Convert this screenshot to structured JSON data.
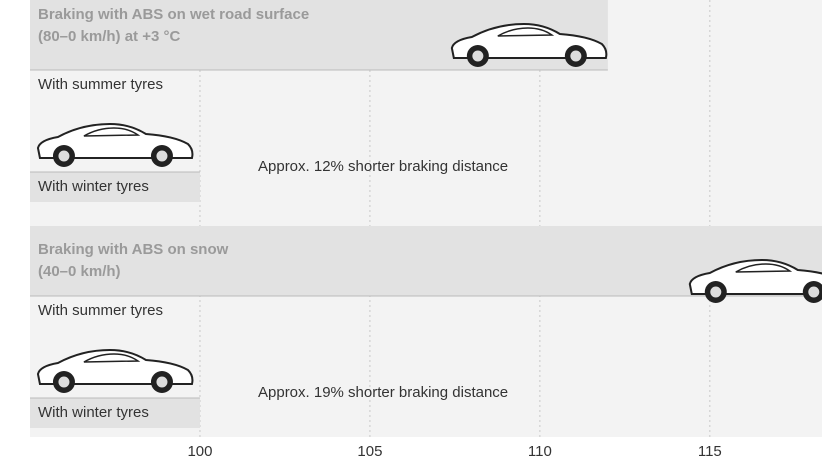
{
  "chart_data": {
    "type": "bar",
    "orientation": "horizontal",
    "groups": [
      {
        "title": [
          "Braking with ABS on wet road surface",
          "(80–0 km/h) at +3 °C"
        ],
        "categories": [
          "With summer tyres",
          "With winter tyres"
        ],
        "values": [
          112,
          100
        ],
        "annotation": "Approx. 12% shorter braking distance"
      },
      {
        "title": [
          "Braking with ABS on snow",
          "(40–0 km/h)"
        ],
        "categories": [
          "With summer tyres",
          "With winter tyres"
        ],
        "values": [
          119,
          100
        ],
        "annotation": "Approx. 19% shorter braking distance"
      }
    ],
    "xlim": [
      95,
      118.3
    ],
    "xticks": [
      100,
      105,
      110,
      115
    ],
    "grid": true,
    "color": "#e2e2e2"
  }
}
